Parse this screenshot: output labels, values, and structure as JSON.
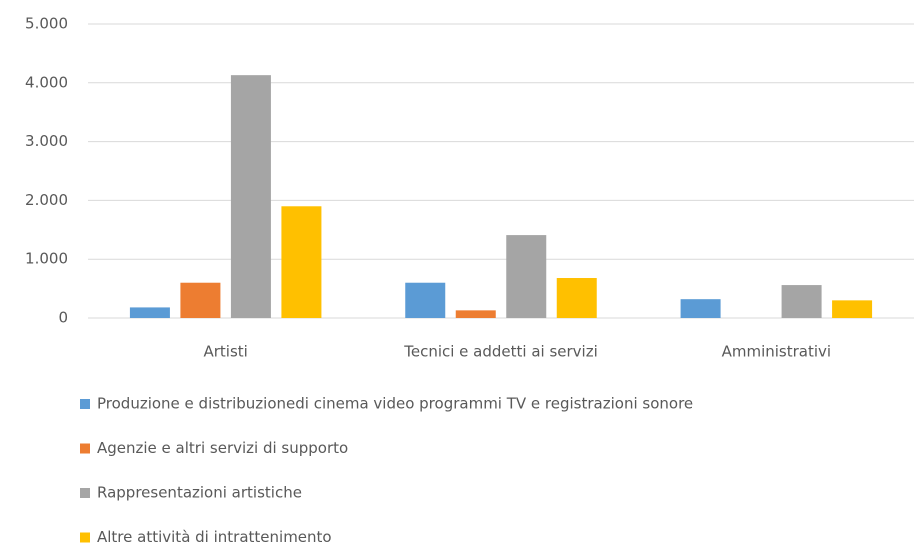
{
  "chart_data": {
    "type": "bar",
    "categories": [
      "Artisti",
      "Tecnici e addetti ai servizi",
      "Amministrativi"
    ],
    "series": [
      {
        "name": "Produzione e distribuzionedi cinema video programmi TV e registrazioni sonore",
        "color": "#5b9bd5",
        "values": [
          180,
          600,
          320
        ]
      },
      {
        "name": "Agenzie e altri servizi di supporto",
        "color": "#ed7d31",
        "values": [
          600,
          130,
          0
        ]
      },
      {
        "name": "Rappresentazioni artistiche",
        "color": "#a5a5a5",
        "values": [
          4130,
          1410,
          560
        ]
      },
      {
        "name": "Altre attività di intrattenimento",
        "color": "#ffc000",
        "values": [
          1900,
          680,
          300
        ]
      }
    ],
    "ylim": [
      0,
      5000
    ],
    "yticks": [
      0,
      {
        "value": 1000,
        "label": "1.000"
      },
      {
        "value": 2000,
        "label": "2.000"
      },
      {
        "value": 3000,
        "label": "3.000"
      },
      {
        "value": 4000,
        "label": "4.000"
      },
      {
        "value": 5000,
        "label": "5.000"
      }
    ],
    "grid": true
  }
}
